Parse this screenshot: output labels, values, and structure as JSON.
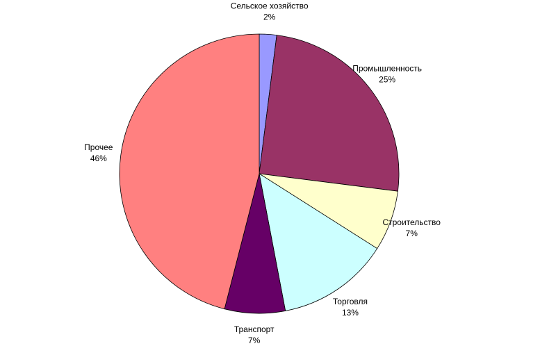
{
  "chart_data": {
    "type": "pie",
    "categories": [
      "Сельское хозяйство",
      "Промышленность",
      "Строительство",
      "Торговля",
      "Транспорт",
      "Прочее"
    ],
    "values": [
      2,
      25,
      7,
      13,
      7,
      46
    ],
    "value_labels": [
      "2%",
      "25%",
      "7%",
      "13%",
      "7%",
      "46%"
    ],
    "colors": [
      "#9999ff",
      "#993366",
      "#ffffcc",
      "#ccffff",
      "#660066",
      "#ff8080"
    ]
  }
}
